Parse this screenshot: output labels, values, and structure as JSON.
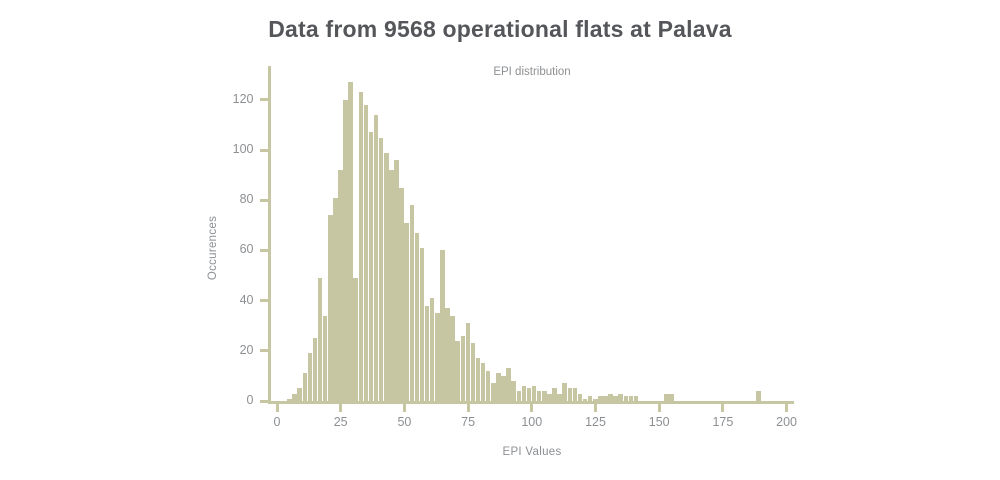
{
  "header": {
    "title": "Data from 9568 operational flats at Palava"
  },
  "chart": {
    "subtitle": "EPI distribution",
    "xlabel": "EPI Values",
    "ylabel": "Occurences",
    "colors": {
      "bar": "#c7c6a2",
      "axis": "#c7c6a2",
      "title_text": "#54565a",
      "label_text": "#8d9093"
    }
  },
  "chart_data": {
    "type": "bar",
    "subtype": "histogram",
    "title": "EPI distribution",
    "xlabel": "EPI Values",
    "ylabel": "Occurences",
    "bin_start": 0,
    "bin_width": 2,
    "x_ticks": [
      0,
      25,
      50,
      75,
      100,
      125,
      150,
      175,
      200
    ],
    "y_ticks": [
      0,
      20,
      40,
      60,
      80,
      100,
      120
    ],
    "xlim": [
      -2.5,
      202.5
    ],
    "ylim": [
      0,
      133.5
    ],
    "grid": false,
    "legend": "none",
    "values": [
      0,
      0,
      1,
      3,
      5,
      11,
      19,
      25,
      49,
      34,
      74,
      81,
      92,
      120,
      127,
      49,
      123,
      118,
      107,
      114,
      105,
      99,
      92,
      96,
      85,
      71,
      78,
      67,
      61,
      38,
      41,
      35,
      60,
      37,
      34,
      24,
      26,
      31,
      23,
      17,
      15,
      12,
      7,
      11,
      10,
      13,
      8,
      4,
      6,
      5,
      6,
      4,
      4,
      3,
      5,
      3,
      7,
      5,
      5,
      3,
      1,
      2,
      1,
      2,
      2,
      3,
      2,
      3,
      2,
      2,
      2,
      0,
      0,
      0,
      0,
      0,
      3,
      3,
      0,
      0,
      0,
      0,
      0,
      0,
      0,
      0,
      0,
      0,
      0,
      0,
      0,
      0,
      0,
      0,
      4,
      0,
      0,
      0,
      0,
      0
    ]
  }
}
